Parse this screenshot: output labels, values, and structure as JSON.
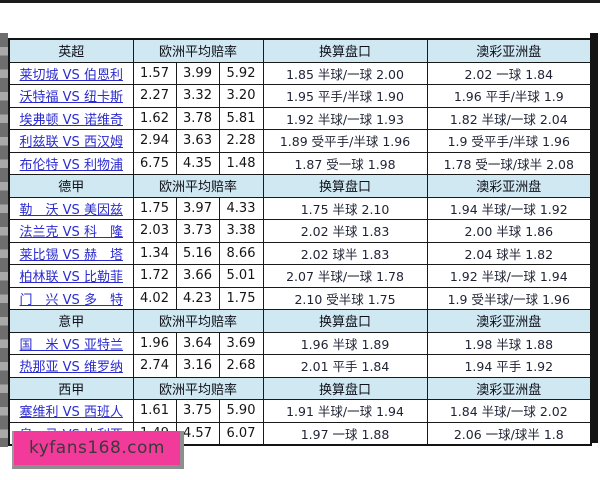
{
  "watermark": "kyfans168.com",
  "columns": {
    "odds_header": "欧洲平均赔率",
    "handicap_header": "换算盘口",
    "macau_header": "澳彩亚洲盘"
  },
  "sections": [
    {
      "league": "英超",
      "rows": [
        {
          "match": "莱切城 VS 伯恩利",
          "odds": [
            "1.57",
            "3.99",
            "5.92"
          ],
          "handicap": "1.85 半球/一球 2.00",
          "macau": "2.02 一球 1.84"
        },
        {
          "match": "沃特福 VS 纽卡斯",
          "odds": [
            "2.27",
            "3.32",
            "3.20"
          ],
          "handicap": "1.95 平手/半球 1.90",
          "macau": "1.96 平手/半球 1.9"
        },
        {
          "match": "埃弗顿 VS 诺维奇",
          "odds": [
            "1.62",
            "3.78",
            "5.81"
          ],
          "handicap": "1.92 半球/一球 1.93",
          "macau": "1.82 半球/一球 2.04"
        },
        {
          "match": "利兹联 VS 西汉姆",
          "odds": [
            "2.94",
            "3.63",
            "2.28"
          ],
          "handicap": "1.89 受平手/半球 1.96",
          "macau": "1.9 受平手/半球 1.96"
        },
        {
          "match": "布伦特 VS 利物浦",
          "odds": [
            "6.75",
            "4.35",
            "1.48"
          ],
          "handicap": "1.87 受一球 1.98",
          "macau": "1.78 受一球/球半 2.08"
        }
      ]
    },
    {
      "league": "德甲",
      "rows": [
        {
          "match": "勒　沃 VS 美因兹",
          "odds": [
            "1.75",
            "3.97",
            "4.33"
          ],
          "handicap": "1.75 半球 2.10",
          "macau": "1.94 半球/一球 1.92"
        },
        {
          "match": "法兰克 VS 科　隆",
          "odds": [
            "2.03",
            "3.73",
            "3.38"
          ],
          "handicap": "2.02 半球 1.83",
          "macau": "2.00 半球 1.86"
        },
        {
          "match": "莱比锡 VS 赫　塔",
          "odds": [
            "1.34",
            "5.16",
            "8.66"
          ],
          "handicap": "2.02 球半 1.83",
          "macau": "2.04 球半 1.82"
        },
        {
          "match": "柏林联 VS 比勒菲",
          "odds": [
            "1.72",
            "3.66",
            "5.01"
          ],
          "handicap": "2.07 半球/一球 1.78",
          "macau": "1.92 半球/一球 1.94"
        },
        {
          "match": "门　兴 VS 多　特",
          "odds": [
            "4.02",
            "4.23",
            "1.75"
          ],
          "handicap": "2.10 受半球 1.75",
          "macau": "1.9 受半球/一球 1.96"
        }
      ]
    },
    {
      "league": "意甲",
      "rows": [
        {
          "match": "国　米 VS 亚特兰",
          "odds": [
            "1.96",
            "3.64",
            "3.69"
          ],
          "handicap": "1.96 半球 1.89",
          "macau": "1.98 半球 1.88"
        },
        {
          "match": "热那亚 VS 维罗纳",
          "odds": [
            "2.74",
            "3.16",
            "2.68"
          ],
          "handicap": "2.01 平手 1.84",
          "macau": "1.94 平手 1.92"
        }
      ]
    },
    {
      "league": "西甲",
      "rows": [
        {
          "match": "塞维利 VS 西班人",
          "odds": [
            "1.61",
            "3.75",
            "5.90"
          ],
          "handicap": "1.91 半球/一球 1.94",
          "macau": "1.84 半球/一球 2.02"
        },
        {
          "match": "皇　马 VS 比利亚",
          "odds": [
            "1.49",
            "4.57",
            "6.07"
          ],
          "handicap": "1.97 一球 1.88",
          "macau": "2.06 一球/球半 1.8"
        }
      ]
    }
  ]
}
